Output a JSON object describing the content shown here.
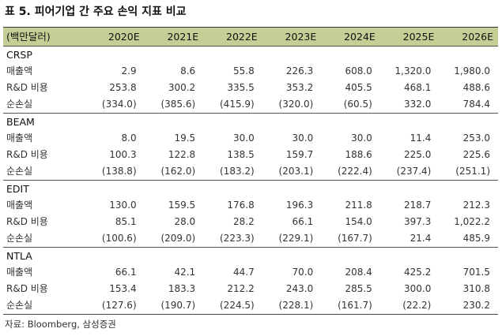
{
  "title": "표 5. 피어기업 간 주요 손익 지표 비교",
  "header": {
    "unit": "(백만달러)",
    "years": [
      "2020E",
      "2021E",
      "2022E",
      "2023E",
      "2024E",
      "2025E",
      "2026E"
    ]
  },
  "groups": [
    {
      "name": "CRSP",
      "rows": [
        {
          "label": "매출액",
          "values": [
            "2.9",
            "8.6",
            "55.8",
            "226.3",
            "608.0",
            "1,320.0",
            "1,980.0"
          ]
        },
        {
          "label": "R&D 비용",
          "values": [
            "253.8",
            "300.2",
            "335.5",
            "353.2",
            "405.5",
            "468.1",
            "488.6"
          ]
        },
        {
          "label": "순손실",
          "values": [
            "(334.0)",
            "(385.6)",
            "(415.9)",
            "(320.0)",
            "(60.5)",
            "332.0",
            "784.4"
          ]
        }
      ]
    },
    {
      "name": "BEAM",
      "rows": [
        {
          "label": "매출액",
          "values": [
            "8.0",
            "19.5",
            "30.0",
            "30.0",
            "30.0",
            "11.4",
            "253.0"
          ]
        },
        {
          "label": "R&D 비용",
          "values": [
            "100.3",
            "122.8",
            "138.5",
            "159.7",
            "188.6",
            "225.0",
            "225.6"
          ]
        },
        {
          "label": "순손실",
          "values": [
            "(138.8)",
            "(162.0)",
            "(183.2)",
            "(203.1)",
            "(222.4)",
            "(237.4)",
            "(251.1)"
          ]
        }
      ]
    },
    {
      "name": "EDIT",
      "rows": [
        {
          "label": "매출액",
          "values": [
            "130.0",
            "159.5",
            "176.8",
            "196.3",
            "211.8",
            "218.7",
            "212.3"
          ]
        },
        {
          "label": "R&D 비용",
          "values": [
            "85.1",
            "28.0",
            "28.2",
            "66.1",
            "154.0",
            "397.3",
            "1,022.2"
          ]
        },
        {
          "label": "순손실",
          "values": [
            "(100.6)",
            "(209.0)",
            "(223.3)",
            "(229.1)",
            "(167.7)",
            "21.4",
            "485.9"
          ]
        }
      ]
    },
    {
      "name": "NTLA",
      "rows": [
        {
          "label": "매출액",
          "values": [
            "66.1",
            "42.1",
            "44.7",
            "70.0",
            "208.4",
            "425.2",
            "701.5"
          ]
        },
        {
          "label": "R&D 비용",
          "values": [
            "153.4",
            "183.3",
            "212.2",
            "243.0",
            "285.5",
            "300.0",
            "310.8"
          ]
        },
        {
          "label": "순손실",
          "values": [
            "(127.6)",
            "(190.7)",
            "(224.5)",
            "(228.1)",
            "(161.7)",
            "(22.2)",
            "230.2"
          ]
        }
      ]
    }
  ],
  "source": "자료: Bloomberg, 삼성증권"
}
